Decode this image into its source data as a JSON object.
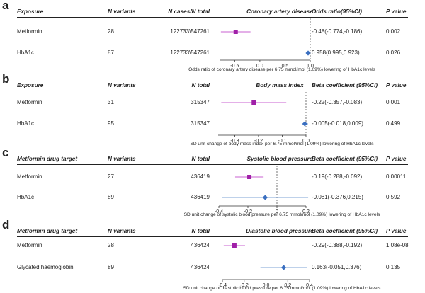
{
  "colors": {
    "metformin": "#a020a8",
    "hba1c": "#3a6fc0",
    "ci_metformin": "#c860d0",
    "ci_hba1c": "#7ea3d6",
    "reference_line": "#555555"
  },
  "chart_data": [
    {
      "type": "forest",
      "panel_label": "a",
      "title": "Coronary artery disease",
      "headers": [
        "Exposure",
        "N variants",
        "N cases/N total",
        "Odds ratio(95%CI)",
        "P value"
      ],
      "rows": [
        {
          "exposure": "Metformin",
          "n_variants": "28",
          "n_total": "122733\\547261",
          "estimate_text": "-0.48(-0.774,-0.186)",
          "p_value": "0.002",
          "estimate": -0.48,
          "ci_low": -0.774,
          "ci_high": -0.186
        },
        {
          "exposure": "HbA1c",
          "n_variants": "87",
          "n_total": "122733\\547261",
          "estimate_text": "0.958(0.995,0.923)",
          "p_value": "0.026",
          "estimate": 0.958,
          "ci_low": 0.923,
          "ci_high": 0.995
        }
      ],
      "xlim": [
        -0.8,
        1.0
      ],
      "ref_value": 1.0,
      "ticks": [
        -0.5,
        0.0,
        0.5,
        1.0
      ],
      "tick_labels": [
        "-0.5",
        "0.0",
        "0.5",
        "1.0"
      ],
      "xlabel": "Odds ratio of coronary artery disease per 6.75 mmol/mol (1.09%) lowering of HbA1c levels"
    },
    {
      "type": "forest",
      "panel_label": "b",
      "title": "Body mass index",
      "headers": [
        "Exposure",
        "N variants",
        "N total",
        "Beta coefficient (95%CI)",
        "P value"
      ],
      "rows": [
        {
          "exposure": "Metformin",
          "n_variants": "31",
          "n_total": "315347",
          "estimate_text": "-0.22(-0.357,-0.083)",
          "p_value": "0.001",
          "estimate": -0.22,
          "ci_low": -0.357,
          "ci_high": -0.083
        },
        {
          "exposure": "HbA1c",
          "n_variants": "95",
          "n_total": "315347",
          "estimate_text": "-0.005(-0.018,0.009)",
          "p_value": "0.499",
          "estimate": -0.005,
          "ci_low": -0.018,
          "ci_high": 0.009
        }
      ],
      "xlim": [
        -0.37,
        0.0
      ],
      "ref_value": 0.0,
      "ticks": [
        -0.3,
        -0.2,
        -0.1,
        0.0
      ],
      "tick_labels": [
        "-0.3",
        "-0.2",
        "-0.1",
        "0.0"
      ],
      "xlabel": "SD unit change of body mass index per 6.75 mmol/mol (1.09%) lowering of HbA1c levels"
    },
    {
      "type": "forest",
      "panel_label": "c",
      "title": "Systolic blood pressure",
      "headers": [
        "Metformin drug target",
        "N variants",
        "N total",
        "Beta coefficient (95%CI)",
        "P value"
      ],
      "rows": [
        {
          "exposure": "Metformin",
          "n_variants": "27",
          "n_total": "436419",
          "estimate_text": "-0.19(-0.288,-0.092)",
          "p_value": "0.00011",
          "estimate": -0.19,
          "ci_low": -0.288,
          "ci_high": -0.092
        },
        {
          "exposure": "HbA1c",
          "n_variants": "89",
          "n_total": "436419",
          "estimate_text": "-0.081(-0.376,0.215)",
          "p_value": "0.592",
          "estimate": -0.081,
          "ci_low": -0.376,
          "ci_high": 0.215
        }
      ],
      "xlim": [
        -0.4,
        0.2
      ],
      "ref_value": 0.0,
      "ticks": [
        -0.4,
        -0.2,
        0.0,
        0.2
      ],
      "tick_labels": [
        "-0.4",
        "-0.2",
        "0",
        "0.2"
      ],
      "xlabel": "SD unit change of systolic blood pressure per 6.75 mmol/mol (1.09%) lowering of HbA1c levels"
    },
    {
      "type": "forest",
      "panel_label": "d",
      "title": "Diastolic blood pressure",
      "headers": [
        "Metformin drug target",
        "N variants",
        "N total",
        "Beta coefficient (95%CI)",
        "P value"
      ],
      "rows": [
        {
          "exposure": "Metformin",
          "n_variants": "28",
          "n_total": "436424",
          "estimate_text": "-0.29(-0.388,-0.192)",
          "p_value": "1.08e-08",
          "estimate": -0.29,
          "ci_low": -0.388,
          "ci_high": -0.192
        },
        {
          "exposure": "Glycated haemoglobin",
          "n_variants": "89",
          "n_total": "436424",
          "estimate_text": "0.163(-0.051,0.376)",
          "p_value": "0.135",
          "estimate": 0.163,
          "ci_low": -0.051,
          "ci_high": 0.376
        }
      ],
      "xlim": [
        -0.4,
        0.4
      ],
      "ref_value": 0.0,
      "ticks": [
        -0.4,
        -0.2,
        0.0,
        0.2,
        0.4
      ],
      "tick_labels": [
        "-0.4",
        "-0.2",
        "0.0",
        "0.2",
        "0.4"
      ],
      "xlabel": "SD unit change of diastolic blood pressure per 6.75 mmol/mol (1.09%) lowering of HbA1c levels"
    }
  ]
}
